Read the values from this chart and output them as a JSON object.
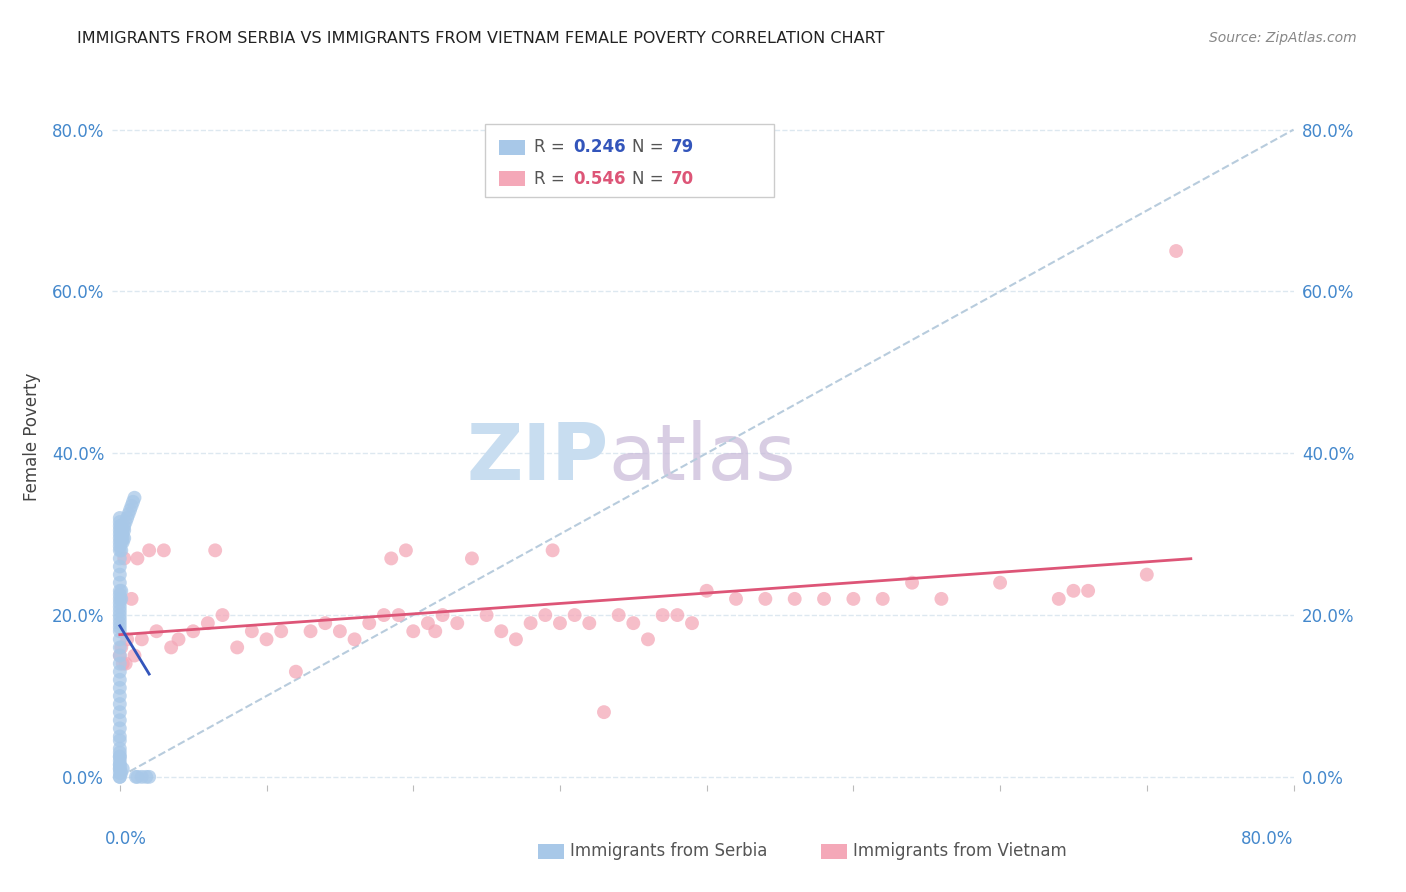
{
  "title": "IMMIGRANTS FROM SERBIA VS IMMIGRANTS FROM VIETNAM FEMALE POVERTY CORRELATION CHART",
  "source": "Source: ZipAtlas.com",
  "ylabel": "Female Poverty",
  "serbia_R": 0.246,
  "serbia_N": 79,
  "vietnam_R": 0.546,
  "vietnam_N": 70,
  "serbia_color": "#a8c8e8",
  "vietnam_color": "#f4a8b8",
  "serbia_line_color": "#3355bb",
  "vietnam_line_color": "#dd5577",
  "diagonal_color": "#b8ccdd",
  "watermark_zip_color": "#c8ddf0",
  "watermark_atlas_color": "#c8b8d8",
  "legend_label_serbia": "Immigrants from Serbia",
  "legend_label_vietnam": "Immigrants from Vietnam",
  "serbia_x": [
    0.0,
    0.0,
    0.0,
    0.0,
    0.0,
    0.0,
    0.0,
    0.0,
    0.0,
    0.0,
    0.0,
    0.0,
    0.0,
    0.0,
    0.0,
    0.0,
    0.0,
    0.0,
    0.0,
    0.0,
    0.0,
    0.0,
    0.0,
    0.0,
    0.0,
    0.0,
    0.0,
    0.0,
    0.0,
    0.0,
    0.0,
    0.0,
    0.0,
    0.0,
    0.0,
    0.0,
    0.0,
    0.0,
    0.0,
    0.0,
    0.0,
    0.0,
    0.0,
    0.0,
    0.0,
    0.0,
    0.0,
    0.0,
    0.0,
    0.0,
    0.001,
    0.001,
    0.001,
    0.001,
    0.001,
    0.001,
    0.001,
    0.001,
    0.001,
    0.002,
    0.002,
    0.002,
    0.002,
    0.002,
    0.003,
    0.003,
    0.003,
    0.004,
    0.005,
    0.006,
    0.007,
    0.008,
    0.009,
    0.01,
    0.011,
    0.012,
    0.015,
    0.018,
    0.02
  ],
  "serbia_y": [
    0.0,
    0.0,
    0.01,
    0.015,
    0.02,
    0.025,
    0.03,
    0.05,
    0.06,
    0.07,
    0.08,
    0.09,
    0.1,
    0.11,
    0.12,
    0.13,
    0.14,
    0.15,
    0.16,
    0.17,
    0.18,
    0.185,
    0.19,
    0.195,
    0.2,
    0.205,
    0.21,
    0.215,
    0.22,
    0.225,
    0.23,
    0.24,
    0.25,
    0.26,
    0.27,
    0.28,
    0.285,
    0.29,
    0.295,
    0.3,
    0.305,
    0.31,
    0.315,
    0.32,
    0.01,
    0.015,
    0.005,
    0.025,
    0.035,
    0.045,
    0.22,
    0.23,
    0.28,
    0.29,
    0.295,
    0.3,
    0.305,
    0.31,
    0.005,
    0.29,
    0.295,
    0.3,
    0.305,
    0.01,
    0.295,
    0.305,
    0.31,
    0.315,
    0.32,
    0.325,
    0.33,
    0.335,
    0.34,
    0.345,
    0.0,
    0.0,
    0.0,
    0.0,
    0.0
  ],
  "vietnam_x": [
    0.0,
    0.001,
    0.002,
    0.003,
    0.004,
    0.005,
    0.008,
    0.01,
    0.012,
    0.015,
    0.02,
    0.025,
    0.03,
    0.035,
    0.04,
    0.05,
    0.06,
    0.065,
    0.07,
    0.08,
    0.09,
    0.1,
    0.11,
    0.12,
    0.13,
    0.14,
    0.15,
    0.16,
    0.17,
    0.18,
    0.185,
    0.19,
    0.195,
    0.2,
    0.21,
    0.215,
    0.22,
    0.23,
    0.24,
    0.25,
    0.26,
    0.27,
    0.28,
    0.29,
    0.295,
    0.3,
    0.31,
    0.32,
    0.33,
    0.34,
    0.35,
    0.36,
    0.37,
    0.38,
    0.39,
    0.4,
    0.42,
    0.44,
    0.46,
    0.48,
    0.5,
    0.52,
    0.54,
    0.56,
    0.6,
    0.64,
    0.65,
    0.66,
    0.7,
    0.72
  ],
  "vietnam_y": [
    0.15,
    0.16,
    0.14,
    0.27,
    0.14,
    0.17,
    0.22,
    0.15,
    0.27,
    0.17,
    0.28,
    0.18,
    0.28,
    0.16,
    0.17,
    0.18,
    0.19,
    0.28,
    0.2,
    0.16,
    0.18,
    0.17,
    0.18,
    0.13,
    0.18,
    0.19,
    0.18,
    0.17,
    0.19,
    0.2,
    0.27,
    0.2,
    0.28,
    0.18,
    0.19,
    0.18,
    0.2,
    0.19,
    0.27,
    0.2,
    0.18,
    0.17,
    0.19,
    0.2,
    0.28,
    0.19,
    0.2,
    0.19,
    0.08,
    0.2,
    0.19,
    0.17,
    0.2,
    0.2,
    0.19,
    0.23,
    0.22,
    0.22,
    0.22,
    0.22,
    0.22,
    0.22,
    0.24,
    0.22,
    0.24,
    0.22,
    0.23,
    0.23,
    0.25,
    0.65
  ],
  "xmin": -0.005,
  "xmax": 0.8,
  "ymin": -0.01,
  "ymax": 0.85,
  "ytick_vals": [
    0.0,
    0.2,
    0.4,
    0.6,
    0.8
  ],
  "xtick_vals": [
    0.0,
    0.1,
    0.2,
    0.3,
    0.4,
    0.5,
    0.6,
    0.7,
    0.8
  ],
  "grid_color": "#dde8f0",
  "background_color": "#ffffff",
  "title_color": "#222222",
  "tick_label_color": "#4488cc",
  "ylabel_color": "#444444"
}
